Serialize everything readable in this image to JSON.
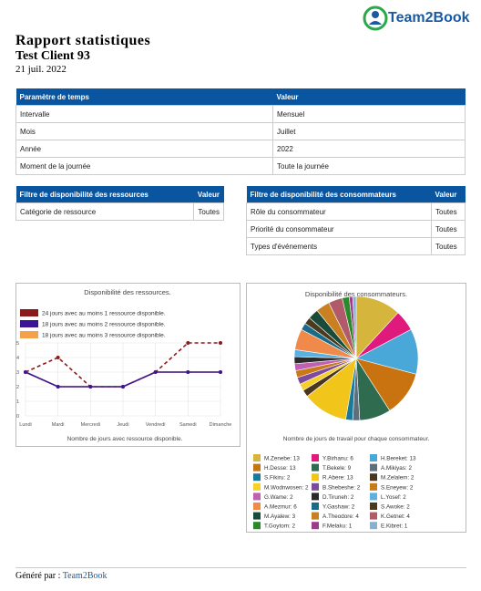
{
  "logo": "Team2Book",
  "header": {
    "title": "Rapport statistiques",
    "client": "Test Client 93",
    "date": "21 juil. 2022"
  },
  "tables": [
    {
      "headers": [
        "Paramètre de temps",
        "Valeur"
      ],
      "rows": [
        [
          "Intervalle",
          "Mensuel"
        ],
        [
          "Mois",
          "Juillet"
        ],
        [
          "Année",
          "2022"
        ],
        [
          "Moment de la journée",
          "Toute la journée"
        ]
      ]
    },
    {
      "headers": [
        "Filtre de disponibilité des ressources",
        "Valeur"
      ],
      "rows": [
        [
          "Catégorie de ressource",
          "Toutes"
        ]
      ]
    },
    {
      "headers": [
        "Filtre de disponibilité des consommateurs",
        "Valeur"
      ],
      "rows": [
        [
          "Rôle du consommateur",
          "Toutes"
        ],
        [
          "Priorité du consommateur",
          "Toutes"
        ],
        [
          "Types d'événements",
          "Toutes"
        ]
      ]
    }
  ],
  "chart_data": [
    {
      "type": "line",
      "title": "Disponibilité des ressources.",
      "x_label": "Nombre de jours avec ressource disponible.",
      "categories": [
        "Lundi",
        "Mardi",
        "Mercredi",
        "Jeudi",
        "Vendredi",
        "Samedi",
        "Dimanche"
      ],
      "ylim": [
        0,
        5
      ],
      "yticks": [
        0,
        1,
        2,
        3,
        4,
        5
      ],
      "grid": true,
      "series": [
        {
          "name": "24 jours avec au moins 1 ressource disponible.",
          "color": "#8b1a1a",
          "dashed": true,
          "values": [
            3,
            4,
            2,
            2,
            3,
            5,
            5
          ]
        },
        {
          "name": "18 jours avec au moins 2 ressource disponible.",
          "color": "#3b1596",
          "values": [
            3,
            2,
            2,
            2,
            3,
            3,
            3
          ]
        },
        {
          "name": "18 jours avec au moins 3 ressource disponible.",
          "color": "#f5a04a",
          "values": [
            3,
            2,
            2,
            2,
            3,
            3,
            3
          ]
        }
      ]
    },
    {
      "type": "pie",
      "title": "Disponibilité des consommateurs.",
      "x_label": "Nombre de jours de travail pour chaque consommateur.",
      "categories": [
        "M.Zenebe: 13",
        "Y.Birhanu: 6",
        "H.Bereket: 13",
        "H.Desse: 13",
        "T.Bekele: 9",
        "A.Mikiyas: 2",
        "S.Fikiru: 2",
        "R.Abere: 13",
        "M.Zelalem: 2",
        "M.Wodnwosen: 2",
        "B.Shebeshe: 2",
        "S.Eneyew: 2",
        "G.Wame: 2",
        "D.Tiruneh: 2",
        "L.Yosef: 2",
        "A.Mezmur: 6",
        "Y.Gashaw: 2",
        "S.Awoke: 2",
        "M.Ayalew: 3",
        "A.Theodore: 4",
        "K.Getnet: 4",
        "T.Goytom: 2",
        "F.Melaku: 1",
        "E.Kibret: 1"
      ],
      "values": [
        13,
        6,
        13,
        13,
        9,
        2,
        2,
        13,
        2,
        2,
        2,
        2,
        2,
        2,
        2,
        6,
        2,
        2,
        3,
        4,
        4,
        2,
        1,
        1
      ],
      "colors": [
        "#d6b53c",
        "#e0197d",
        "#4aa8d8",
        "#c8730f",
        "#2e6b4f",
        "#5f6e7c",
        "#1a7a9a",
        "#f2c51a",
        "#4a3520",
        "#f5cf2a",
        "#7d4a9c",
        "#c87a1a",
        "#c060b0",
        "#2a2a2a",
        "#5ab0e0",
        "#f08a4a",
        "#1a6a8a",
        "#4a3a20",
        "#1a4a3a",
        "#c88020",
        "#b05a6a",
        "#2a8a2a",
        "#a03a8a",
        "#8ab0d0"
      ]
    }
  ],
  "footer": {
    "label": "Généré par :",
    "brand": "Team2Book"
  }
}
